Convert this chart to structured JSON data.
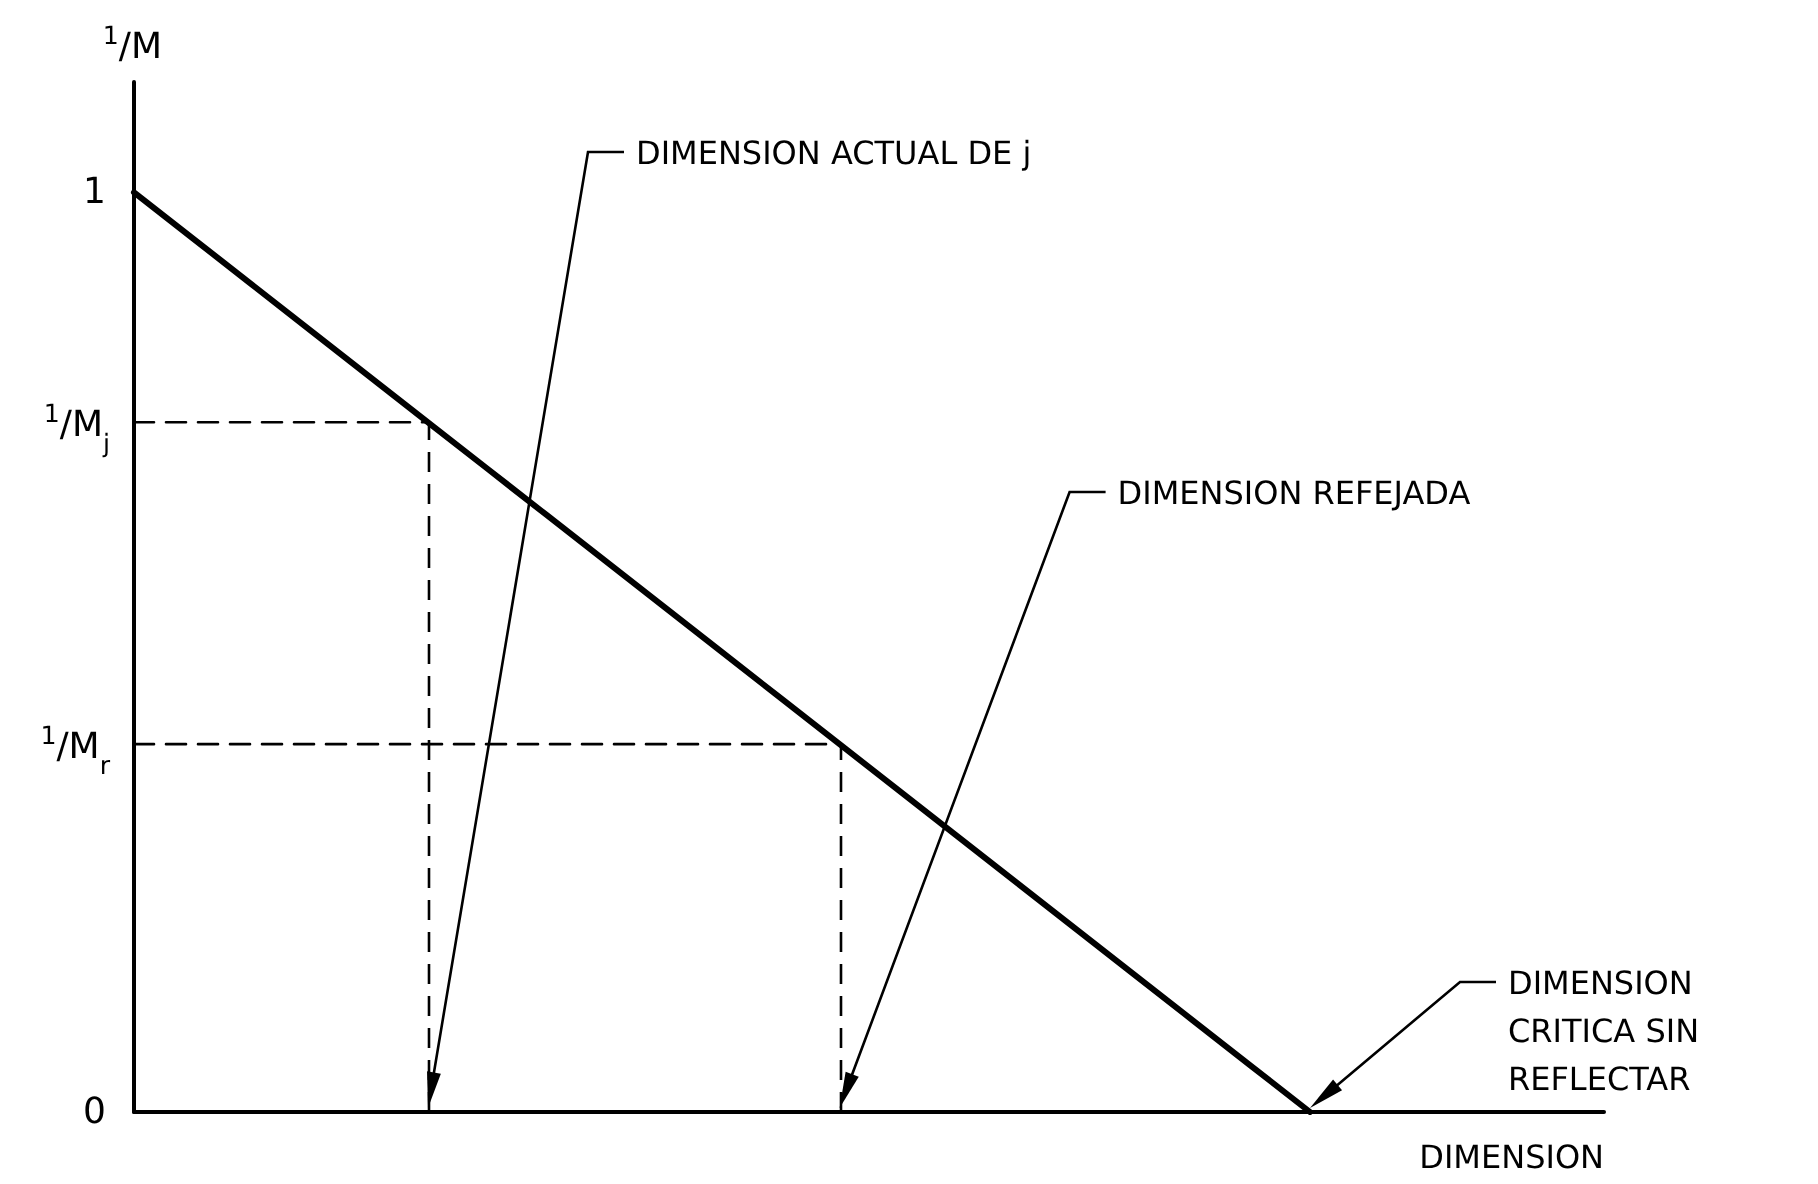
{
  "chart_data": {
    "type": "line",
    "ylabel": "$^{1}$/M",
    "xlabel": "DIMENSION",
    "categories": [
      null,
      null,
      null,
      null,
      null,
      null,
      null,
      null,
      null,
      null,
      null,
      null,
      null,
      null,
      null,
      null,
      null,
      null,
      null,
      null,
      null,
      null,
      null,
      null,
      null,
      null
    ],
    "ylim": [
      0,
      1.12
    ],
    "yticks": [
      0,
      1
    ],
    "grid": false,
    "marker": "none",
    "series": [
      {
        "values": [
          1,
          0.95,
          0.9,
          0.85,
          0.8,
          0.75,
          0.7,
          0.65,
          0.6,
          0.55,
          0.5,
          0.45,
          0.4,
          0.35,
          0.3,
          0.25,
          0.2,
          0.15,
          0.1,
          0.05,
          0,
          null,
          null,
          null,
          null,
          null
        ],
        "color": "#000000",
        "line_style": "solid"
      },
      {
        "values": [
          0.75,
          0.75,
          0.75,
          0.75,
          0.75,
          0.75,
          null,
          null,
          null,
          null,
          null,
          null,
          null,
          null,
          null,
          null,
          null,
          null,
          null,
          null,
          null,
          null,
          null,
          null,
          null,
          null
        ],
        "color": "#000000",
        "line_style": "dashed"
      },
      {
        "values": [
          0.4,
          0.4,
          0.4,
          0.4,
          0.4,
          0.4,
          0.4,
          0.4,
          0.4,
          0.4,
          0.4,
          0.4,
          0.4,
          null,
          null,
          null,
          null,
          null,
          null,
          null,
          null,
          null,
          null,
          null,
          null,
          null
        ],
        "color": "#000000",
        "line_style": "dashed"
      }
    ],
    "annotations": [
      "$^{1}$/M$_{j}$",
      "$^{1}$/M$_{r}$",
      "DIMENSION ACTUAL DE j",
      "DIMENSION REFEJADA",
      "DIMENSION\nCRITICA SIN\nREFLECTAR"
    ]
  }
}
